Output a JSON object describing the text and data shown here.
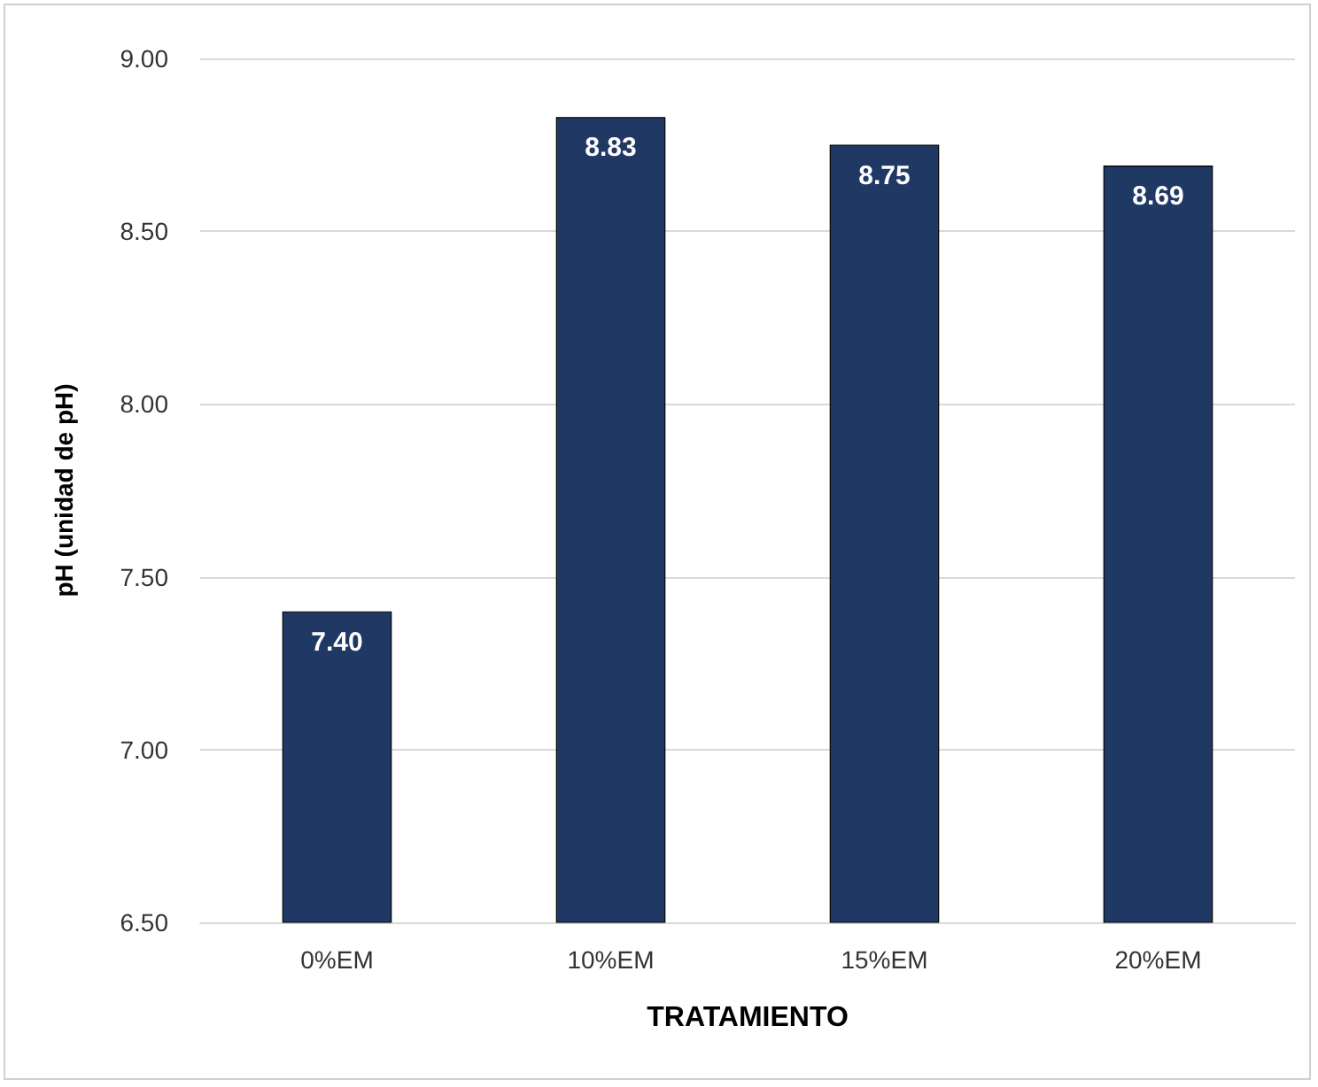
{
  "chart_data": {
    "type": "bar",
    "xlabel": "TRATAMIENTO",
    "ylabel": "pH (unidad de pH)",
    "categories": [
      "0%EM",
      "10%EM",
      "15%EM",
      "20%EM"
    ],
    "values": [
      7.4,
      8.83,
      8.75,
      8.69
    ],
    "color": "#1f3864",
    "value_labels": [
      "7.40",
      "8.83",
      "8.75",
      "8.69"
    ],
    "ylim": [
      6.5,
      9.0
    ],
    "yticks": [
      {
        "value": 6.5,
        "label": "6.50"
      },
      {
        "value": 7.0,
        "label": "7.00"
      },
      {
        "value": 7.5,
        "label": "7.50"
      },
      {
        "value": 8.0,
        "label": "8.00"
      },
      {
        "value": 8.5,
        "label": "8.50"
      },
      {
        "value": 9.0,
        "label": "9.00"
      }
    ],
    "grid": "y"
  }
}
